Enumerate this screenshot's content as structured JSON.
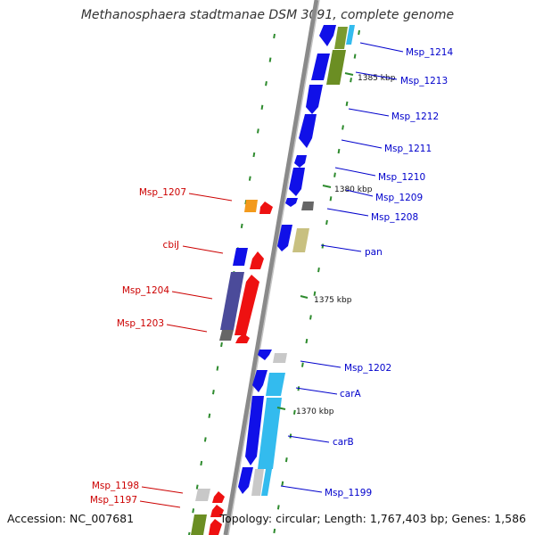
{
  "title": "Methanosphaera stadtmanae DSM 3091, complete genome",
  "footer": {
    "accession": "Accession: NC_007681",
    "summary": "Topology: circular; Length: 1,767,403 bp; Genes: 1,586"
  },
  "colors": {
    "backbone": "#8a8a8a",
    "tick": "#2e8b2e",
    "forward_label": "#0000cc",
    "reverse_label": "#cc0000",
    "gene_blue": "#1010e8",
    "gene_red": "#ee1111",
    "gene_cyan": "#33bbee",
    "gene_olive": "#6b8e23",
    "gene_purple": "#4b4b9a",
    "gene_khaki": "#c8c080",
    "gene_orange": "#f39a1c",
    "gene_grey": "#888888",
    "gene_lightgrey": "#c8c8c8"
  },
  "scale_labels": [
    "1385 kbp",
    "1380 kbp",
    "1375 kbp",
    "1370 kbp"
  ],
  "genes_forward": [
    "Msp_1214",
    "Msp_1213",
    "Msp_1212",
    "Msp_1211",
    "Msp_1210",
    "Msp_1209",
    "Msp_1208",
    "pan",
    "Msp_1202",
    "carA",
    "carB",
    "Msp_1199"
  ],
  "genes_reverse": [
    "Msp_1207",
    "cbiJ",
    "Msp_1204",
    "Msp_1203",
    "Msp_1198",
    "Msp_1197"
  ]
}
